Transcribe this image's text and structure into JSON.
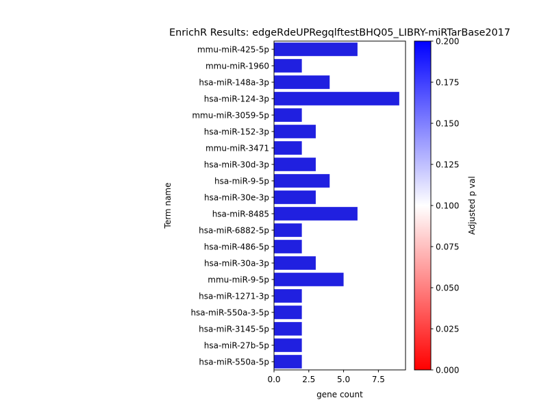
{
  "chart_data": {
    "type": "bar",
    "orientation": "horizontal",
    "title": "EnrichR Results: edgeRdeUPRegqlftestBHQ05_LIBRY-miRTarBase2017",
    "xlabel": "gene count",
    "ylabel": "Term name",
    "xlim": [
      0,
      9.45
    ],
    "xticks": [
      "0.0",
      "2.5",
      "5.0",
      "7.5"
    ],
    "xtick_values": [
      0,
      2.5,
      5.0,
      7.5
    ],
    "categories": [
      "mmu-miR-425-5p",
      "mmu-miR-1960",
      "hsa-miR-148a-3p",
      "hsa-miR-124-3p",
      "mmu-miR-3059-5p",
      "hsa-miR-152-3p",
      "mmu-miR-3471",
      "hsa-miR-30d-3p",
      "hsa-miR-9-5p",
      "hsa-miR-30e-3p",
      "hsa-miR-8485",
      "hsa-miR-6882-5p",
      "hsa-miR-486-5p",
      "hsa-miR-30a-3p",
      "mmu-miR-9-5p",
      "hsa-miR-1271-3p",
      "hsa-miR-550a-3-5p",
      "hsa-miR-3145-5p",
      "hsa-miR-27b-5p",
      "hsa-miR-550a-5p"
    ],
    "values": [
      6,
      2,
      4,
      9,
      2,
      3,
      2,
      3,
      4,
      3,
      6,
      2,
      2,
      3,
      5,
      2,
      2,
      2,
      2,
      2
    ],
    "bar_color": "#2020e0",
    "grid": false,
    "colorbar": {
      "label": "Adjusted p val",
      "range": [
        0,
        0.2
      ],
      "ticks": [
        "0.000",
        "0.025",
        "0.050",
        "0.075",
        "0.100",
        "0.125",
        "0.150",
        "0.175",
        "0.200"
      ],
      "tick_values": [
        0,
        0.025,
        0.05,
        0.075,
        0.1,
        0.125,
        0.15,
        0.175,
        0.2
      ],
      "colors": [
        "#ff0000",
        "#ffffff",
        "#0000ff"
      ]
    }
  }
}
